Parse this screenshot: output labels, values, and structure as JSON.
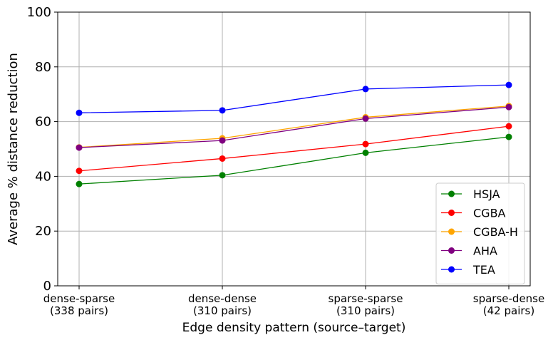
{
  "chart_data": {
    "type": "line",
    "title": "",
    "xlabel": "Edge density pattern (source–target)",
    "ylabel": "Average % distance reduction",
    "categories": [
      [
        "dense-sparse",
        "(338 pairs)"
      ],
      [
        "dense-dense",
        "(310 pairs)"
      ],
      [
        "sparse-sparse",
        "(310 pairs)"
      ],
      [
        "sparse-dense",
        "(42 pairs)"
      ]
    ],
    "ylim": [
      0,
      100
    ],
    "yticks": [
      0,
      20,
      40,
      60,
      80,
      100
    ],
    "grid": true,
    "legend_position": "lower-right",
    "series": [
      {
        "name": "HSJA",
        "color": "#008000",
        "values": [
          37.2,
          40.4,
          48.6,
          54.4
        ]
      },
      {
        "name": "CGBA",
        "color": "#ff0000",
        "values": [
          42.0,
          46.5,
          51.8,
          58.3
        ]
      },
      {
        "name": "CGBA-H",
        "color": "#ffa500",
        "values": [
          50.6,
          53.9,
          61.6,
          65.7
        ]
      },
      {
        "name": "AHA",
        "color": "#800080",
        "values": [
          50.5,
          53.1,
          61.1,
          65.3
        ]
      },
      {
        "name": "TEA",
        "color": "#0000ff",
        "values": [
          63.2,
          64.1,
          71.9,
          73.4
        ]
      }
    ]
  }
}
